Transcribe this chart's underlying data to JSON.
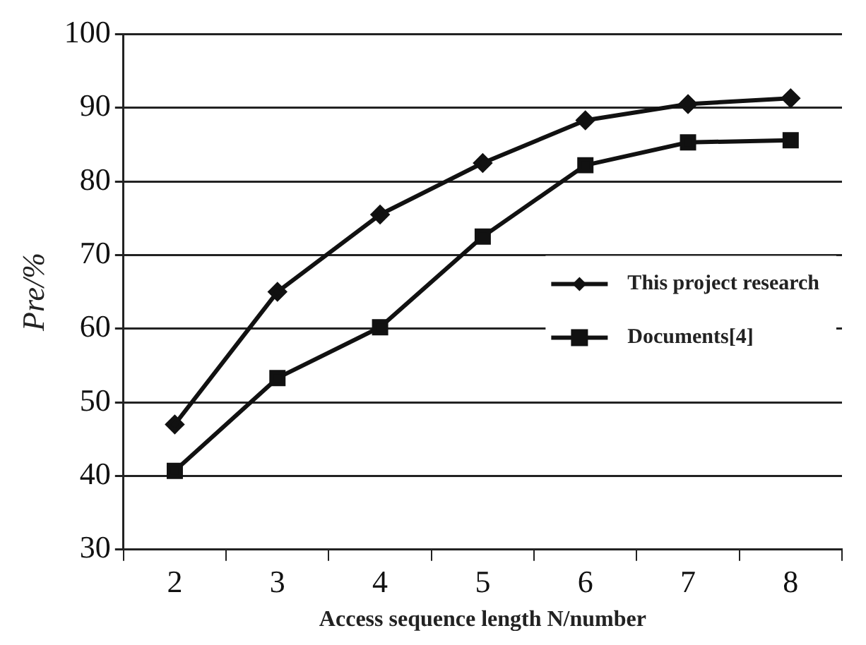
{
  "chart_data": {
    "type": "line",
    "xlabel": "Access sequence length N/number",
    "ylabel": "Pre/%",
    "categories": [
      "2",
      "3",
      "4",
      "5",
      "6",
      "7",
      "8"
    ],
    "series": [
      {
        "name": "This project research",
        "color": "#111111",
        "marker": "diamond",
        "values": [
          47,
          65,
          75.5,
          82.5,
          88.3,
          90.5,
          91.3
        ]
      },
      {
        "name": "Documents[4]",
        "color": "#111111",
        "marker": "square",
        "values": [
          40.7,
          53.3,
          60.2,
          72.5,
          82.2,
          85.3,
          85.6
        ]
      }
    ],
    "ylim": [
      30,
      100
    ],
    "yticks": [
      30,
      40,
      50,
      60,
      70,
      80,
      90,
      100
    ],
    "grid": "y",
    "legend": "right"
  }
}
